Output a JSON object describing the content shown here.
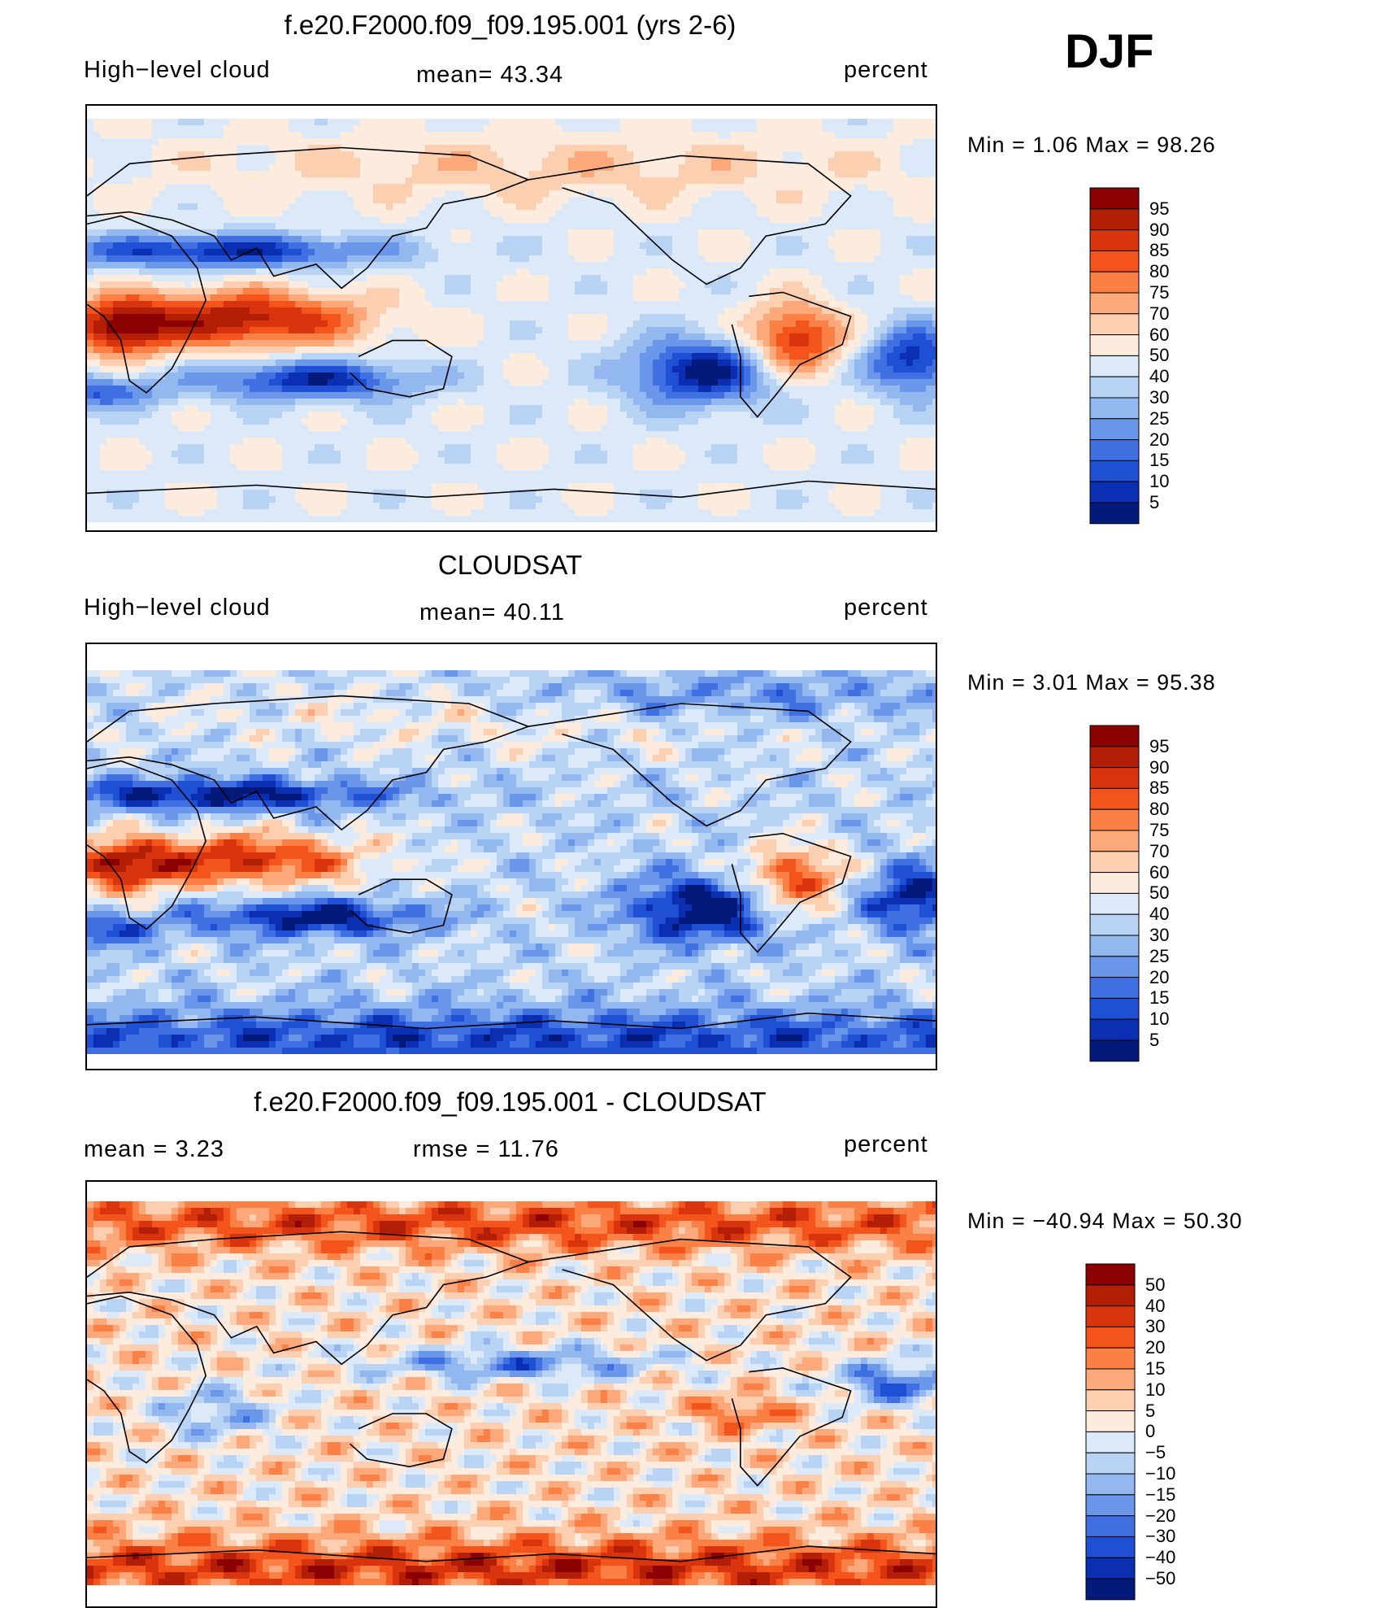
{
  "season": "DJF",
  "panels": [
    {
      "title": "f.e20.F2000.f09_f09.195.001 (yrs 2-6)",
      "left_label": "High−level cloud",
      "center_label": "mean=   43.34",
      "right_label": "percent",
      "minmax": "Min  =     1.06  Max  =    98.26"
    },
    {
      "title": "CLOUDSAT",
      "left_label": "High−level cloud",
      "center_label": "mean=   40.11",
      "right_label": "percent",
      "minmax": "Min  =     3.01  Max  =    95.38"
    },
    {
      "title": "f.e20.F2000.f09_f09.195.001 - CLOUDSAT",
      "left_label": "mean  =     3.23",
      "center_label": "rmse  =    11.76",
      "right_label": "percent",
      "minmax": "Min  = −40.94  Max  =    50.30"
    }
  ],
  "chart_data": [
    {
      "type": "heatmap",
      "title": "f.e20.F2000.f09_f09.195.001 (yrs 2-6)",
      "variable": "High-level cloud",
      "units": "percent",
      "mean": 43.34,
      "min": 1.06,
      "max": 98.26,
      "colorbar_levels": [
        "95",
        "90",
        "85",
        "80",
        "75",
        "70",
        "60",
        "50",
        "40",
        "30",
        "25",
        "20",
        "15",
        "10",
        "5"
      ],
      "colorbar_colors": [
        "#8b0000",
        "#b21e06",
        "#d8340e",
        "#f2541b",
        "#fa8045",
        "#fca87a",
        "#fdcfb1",
        "#fdebde",
        "#dbe9f8",
        "#b9d3f5",
        "#93b7ef",
        "#6a97ea",
        "#3f6fe0",
        "#1f4fd3",
        "#0a2fb2",
        "#041a7a"
      ]
    },
    {
      "type": "heatmap",
      "title": "CLOUDSAT",
      "variable": "High-level cloud",
      "units": "percent",
      "mean": 40.11,
      "min": 3.01,
      "max": 95.38,
      "colorbar_levels": [
        "95",
        "90",
        "85",
        "80",
        "75",
        "70",
        "60",
        "50",
        "40",
        "30",
        "25",
        "20",
        "15",
        "10",
        "5"
      ],
      "colorbar_colors": [
        "#8b0000",
        "#b21e06",
        "#d8340e",
        "#f2541b",
        "#fa8045",
        "#fca87a",
        "#fdcfb1",
        "#fdebde",
        "#dbe9f8",
        "#b9d3f5",
        "#93b7ef",
        "#6a97ea",
        "#3f6fe0",
        "#1f4fd3",
        "#0a2fb2",
        "#041a7a"
      ]
    },
    {
      "type": "heatmap",
      "title": "f.e20.F2000.f09_f09.195.001 - CLOUDSAT",
      "units": "percent",
      "mean": 3.23,
      "rmse": 11.76,
      "min": -40.94,
      "max": 50.3,
      "colorbar_levels": [
        "50",
        "40",
        "30",
        "20",
        "15",
        "10",
        "5",
        "0",
        "−5",
        "−10",
        "−15",
        "−20",
        "−30",
        "−40",
        "−50"
      ],
      "colorbar_colors": [
        "#8b0000",
        "#b21e06",
        "#d8340e",
        "#f2541b",
        "#fa8045",
        "#fca87a",
        "#fdcfb1",
        "#fdebde",
        "#dbe9f8",
        "#b9d3f5",
        "#93b7ef",
        "#6a97ea",
        "#3f6fe0",
        "#1f4fd3",
        "#0a2fb2",
        "#041a7a"
      ]
    }
  ]
}
